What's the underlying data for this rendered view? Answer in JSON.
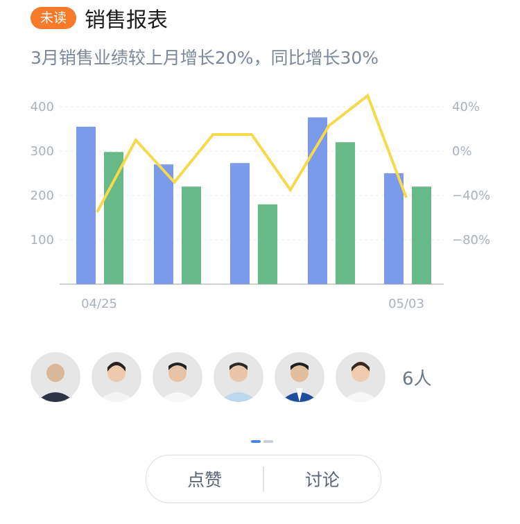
{
  "header": {
    "badge": "未读",
    "title": "销售报表"
  },
  "summary": "3月销售业绩较上月增长20%，同比增长30%",
  "colors": {
    "blue_bar": "#7c9aea",
    "green_bar": "#67b98a",
    "line": "#f7d94c",
    "badge": "#f57a2a"
  },
  "chart_data": {
    "type": "bar",
    "x_tick_labels": [
      "04/25",
      "05/03"
    ],
    "left_axis": {
      "ticks": [
        100,
        200,
        300,
        400
      ],
      "ylim": [
        0,
        400
      ]
    },
    "right_axis": {
      "ticks": [
        "40%",
        "0%",
        "−40%",
        "−80%"
      ],
      "ylim": [
        -120,
        40
      ]
    },
    "series": [
      {
        "values": [
          355,
          270,
          273,
          376,
          250
        ],
        "type": "bar",
        "color": "#7c9aea"
      },
      {
        "values": [
          298,
          220,
          180,
          320,
          220
        ],
        "type": "bar",
        "color": "#67b98a"
      },
      {
        "values": [
          -55,
          10,
          -28,
          15,
          15,
          -35,
          23,
          50,
          -42
        ],
        "type": "line",
        "axis": "right",
        "color": "#f7d94c"
      }
    ],
    "grid": true
  },
  "participants": {
    "avatars": [
      "avatar-1",
      "avatar-2",
      "avatar-3",
      "avatar-4",
      "avatar-5",
      "avatar-6"
    ],
    "count_label": "6人"
  },
  "actions": {
    "like": "点赞",
    "discuss": "讨论"
  }
}
